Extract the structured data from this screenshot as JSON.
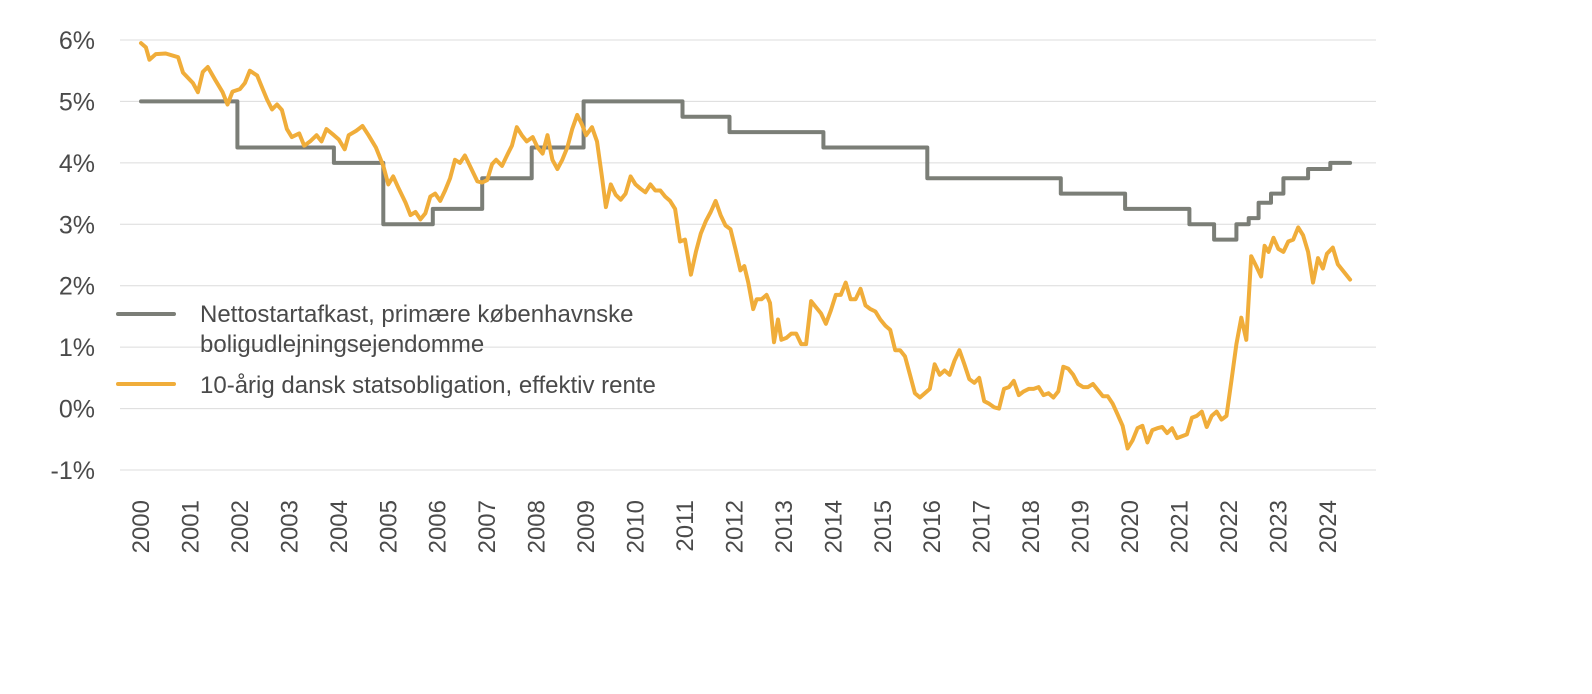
{
  "chart_data": {
    "type": "line",
    "title": "",
    "xlabel": "",
    "ylabel": "",
    "xlim": [
      2000,
      2024.67
    ],
    "ylim": [
      -1,
      6
    ],
    "grid": "horizontal",
    "legend_position": "left-middle",
    "y_ticks": [
      {
        "value": 6,
        "label": "6%"
      },
      {
        "value": 5,
        "label": "5%"
      },
      {
        "value": 4,
        "label": "4%"
      },
      {
        "value": 3,
        "label": "3%"
      },
      {
        "value": 2,
        "label": "2%"
      },
      {
        "value": 1,
        "label": "1%"
      },
      {
        "value": 0,
        "label": "0%"
      },
      {
        "value": -1,
        "label": "-1%"
      }
    ],
    "x_ticks": [
      "2000",
      "2001",
      "2002",
      "2003",
      "2004",
      "2005",
      "2006",
      "2007",
      "2008",
      "2009",
      "2010",
      "2011",
      "2012",
      "2013",
      "2014",
      "2015",
      "2016",
      "2017",
      "2018",
      "2019",
      "2020",
      "2021",
      "2022",
      "2023",
      "2024"
    ],
    "series": [
      {
        "name_lines": [
          "Nettostartafkast, primære københavnske",
          "boligudlejningsejendomme"
        ],
        "color": "#7b7e77",
        "step": true,
        "points": [
          [
            2000.0,
            5.0
          ],
          [
            2001.95,
            5.0
          ],
          [
            2001.95,
            4.25
          ],
          [
            2003.9,
            4.25
          ],
          [
            2003.9,
            4.0
          ],
          [
            2004.9,
            4.0
          ],
          [
            2004.9,
            3.0
          ],
          [
            2005.9,
            3.0
          ],
          [
            2005.9,
            3.25
          ],
          [
            2006.9,
            3.25
          ],
          [
            2006.9,
            3.75
          ],
          [
            2007.9,
            3.75
          ],
          [
            2007.9,
            4.25
          ],
          [
            2008.95,
            4.25
          ],
          [
            2008.95,
            5.0
          ],
          [
            2010.95,
            5.0
          ],
          [
            2010.95,
            4.75
          ],
          [
            2011.9,
            4.75
          ],
          [
            2011.9,
            4.5
          ],
          [
            2013.8,
            4.5
          ],
          [
            2013.8,
            4.25
          ],
          [
            2015.9,
            4.25
          ],
          [
            2015.9,
            3.75
          ],
          [
            2018.6,
            3.75
          ],
          [
            2018.6,
            3.5
          ],
          [
            2019.9,
            3.5
          ],
          [
            2019.9,
            3.25
          ],
          [
            2021.2,
            3.25
          ],
          [
            2021.2,
            3.0
          ],
          [
            2021.7,
            3.0
          ],
          [
            2021.7,
            2.75
          ],
          [
            2022.15,
            2.75
          ],
          [
            2022.15,
            3.0
          ],
          [
            2022.4,
            3.0
          ],
          [
            2022.4,
            3.1
          ],
          [
            2022.6,
            3.1
          ],
          [
            2022.6,
            3.35
          ],
          [
            2022.85,
            3.35
          ],
          [
            2022.85,
            3.5
          ],
          [
            2023.1,
            3.5
          ],
          [
            2023.1,
            3.75
          ],
          [
            2023.6,
            3.75
          ],
          [
            2023.6,
            3.9
          ],
          [
            2024.05,
            3.9
          ],
          [
            2024.05,
            4.0
          ],
          [
            2024.45,
            4.0
          ]
        ]
      },
      {
        "name_lines": [
          "10-årig dansk statsobligation, effektiv rente"
        ],
        "color": "#f0ad3a",
        "step": false,
        "points": [
          [
            2000.0,
            5.95
          ],
          [
            2000.1,
            5.88
          ],
          [
            2000.17,
            5.68
          ],
          [
            2000.3,
            5.77
          ],
          [
            2000.5,
            5.78
          ],
          [
            2000.75,
            5.72
          ],
          [
            2000.85,
            5.47
          ],
          [
            2001.05,
            5.3
          ],
          [
            2001.15,
            5.15
          ],
          [
            2001.25,
            5.48
          ],
          [
            2001.35,
            5.56
          ],
          [
            2001.5,
            5.35
          ],
          [
            2001.65,
            5.15
          ],
          [
            2001.75,
            4.95
          ],
          [
            2001.85,
            5.16
          ],
          [
            2002.0,
            5.2
          ],
          [
            2002.1,
            5.3
          ],
          [
            2002.2,
            5.5
          ],
          [
            2002.35,
            5.42
          ],
          [
            2002.45,
            5.22
          ],
          [
            2002.55,
            5.03
          ],
          [
            2002.65,
            4.87
          ],
          [
            2002.75,
            4.95
          ],
          [
            2002.85,
            4.86
          ],
          [
            2002.95,
            4.55
          ],
          [
            2003.05,
            4.42
          ],
          [
            2003.2,
            4.48
          ],
          [
            2003.3,
            4.28
          ],
          [
            2003.42,
            4.35
          ],
          [
            2003.55,
            4.45
          ],
          [
            2003.65,
            4.35
          ],
          [
            2003.75,
            4.55
          ],
          [
            2003.9,
            4.45
          ],
          [
            2004.0,
            4.38
          ],
          [
            2004.12,
            4.22
          ],
          [
            2004.2,
            4.45
          ],
          [
            2004.35,
            4.52
          ],
          [
            2004.48,
            4.6
          ],
          [
            2004.6,
            4.45
          ],
          [
            2004.75,
            4.25
          ],
          [
            2004.9,
            3.95
          ],
          [
            2005.0,
            3.65
          ],
          [
            2005.1,
            3.78
          ],
          [
            2005.2,
            3.6
          ],
          [
            2005.35,
            3.35
          ],
          [
            2005.45,
            3.15
          ],
          [
            2005.55,
            3.2
          ],
          [
            2005.65,
            3.08
          ],
          [
            2005.75,
            3.18
          ],
          [
            2005.85,
            3.45
          ],
          [
            2005.95,
            3.5
          ],
          [
            2006.05,
            3.38
          ],
          [
            2006.15,
            3.55
          ],
          [
            2006.25,
            3.75
          ],
          [
            2006.35,
            4.05
          ],
          [
            2006.45,
            4.0
          ],
          [
            2006.55,
            4.12
          ],
          [
            2006.65,
            3.95
          ],
          [
            2006.8,
            3.7
          ],
          [
            2006.9,
            3.68
          ],
          [
            2007.0,
            3.72
          ],
          [
            2007.1,
            3.98
          ],
          [
            2007.18,
            4.05
          ],
          [
            2007.3,
            3.95
          ],
          [
            2007.42,
            4.15
          ],
          [
            2007.5,
            4.28
          ],
          [
            2007.6,
            4.58
          ],
          [
            2007.7,
            4.45
          ],
          [
            2007.8,
            4.35
          ],
          [
            2007.92,
            4.42
          ],
          [
            2008.02,
            4.25
          ],
          [
            2008.12,
            4.15
          ],
          [
            2008.22,
            4.45
          ],
          [
            2008.32,
            4.05
          ],
          [
            2008.42,
            3.9
          ],
          [
            2008.52,
            4.05
          ],
          [
            2008.62,
            4.25
          ],
          [
            2008.72,
            4.55
          ],
          [
            2008.82,
            4.78
          ],
          [
            2008.92,
            4.62
          ],
          [
            2009.0,
            4.45
          ],
          [
            2009.12,
            4.58
          ],
          [
            2009.22,
            4.35
          ],
          [
            2009.32,
            3.78
          ],
          [
            2009.4,
            3.28
          ],
          [
            2009.5,
            3.65
          ],
          [
            2009.6,
            3.48
          ],
          [
            2009.7,
            3.4
          ],
          [
            2009.8,
            3.5
          ],
          [
            2009.9,
            3.78
          ],
          [
            2010.0,
            3.65
          ],
          [
            2010.1,
            3.58
          ],
          [
            2010.2,
            3.52
          ],
          [
            2010.3,
            3.65
          ],
          [
            2010.4,
            3.55
          ],
          [
            2010.5,
            3.55
          ],
          [
            2010.6,
            3.45
          ],
          [
            2010.7,
            3.38
          ],
          [
            2010.8,
            3.25
          ],
          [
            2010.9,
            2.72
          ],
          [
            2011.0,
            2.75
          ],
          [
            2011.12,
            2.18
          ],
          [
            2011.22,
            2.55
          ],
          [
            2011.32,
            2.85
          ],
          [
            2011.42,
            3.05
          ],
          [
            2011.52,
            3.2
          ],
          [
            2011.62,
            3.38
          ],
          [
            2011.72,
            3.15
          ],
          [
            2011.82,
            2.98
          ],
          [
            2011.92,
            2.92
          ],
          [
            2012.02,
            2.6
          ],
          [
            2012.12,
            2.25
          ],
          [
            2012.2,
            2.32
          ],
          [
            2012.28,
            2.05
          ],
          [
            2012.38,
            1.62
          ],
          [
            2012.45,
            1.78
          ],
          [
            2012.55,
            1.78
          ],
          [
            2012.65,
            1.85
          ],
          [
            2012.72,
            1.72
          ],
          [
            2012.8,
            1.08
          ],
          [
            2012.88,
            1.45
          ],
          [
            2012.95,
            1.12
          ],
          [
            2013.05,
            1.15
          ],
          [
            2013.15,
            1.22
          ],
          [
            2013.25,
            1.22
          ],
          [
            2013.35,
            1.05
          ],
          [
            2013.45,
            1.05
          ],
          [
            2013.55,
            1.75
          ],
          [
            2013.65,
            1.65
          ],
          [
            2013.75,
            1.55
          ],
          [
            2013.85,
            1.38
          ],
          [
            2013.95,
            1.6
          ],
          [
            2014.05,
            1.85
          ],
          [
            2014.15,
            1.85
          ],
          [
            2014.25,
            2.05
          ],
          [
            2014.35,
            1.78
          ],
          [
            2014.45,
            1.78
          ],
          [
            2014.55,
            1.95
          ],
          [
            2014.65,
            1.68
          ],
          [
            2014.75,
            1.62
          ],
          [
            2014.85,
            1.58
          ],
          [
            2014.95,
            1.45
          ],
          [
            2015.05,
            1.35
          ],
          [
            2015.15,
            1.28
          ],
          [
            2015.25,
            0.95
          ],
          [
            2015.35,
            0.95
          ],
          [
            2015.45,
            0.85
          ],
          [
            2015.55,
            0.55
          ],
          [
            2015.65,
            0.25
          ],
          [
            2015.75,
            0.18
          ],
          [
            2015.85,
            0.25
          ],
          [
            2015.95,
            0.32
          ],
          [
            2016.05,
            0.72
          ],
          [
            2016.15,
            0.55
          ],
          [
            2016.25,
            0.62
          ],
          [
            2016.35,
            0.55
          ],
          [
            2016.45,
            0.78
          ],
          [
            2016.55,
            0.95
          ],
          [
            2016.65,
            0.72
          ],
          [
            2016.75,
            0.48
          ],
          [
            2016.85,
            0.42
          ],
          [
            2016.95,
            0.5
          ],
          [
            2017.05,
            0.12
          ],
          [
            2017.15,
            0.08
          ],
          [
            2017.25,
            0.02
          ],
          [
            2017.35,
            0.0
          ],
          [
            2017.45,
            0.32
          ],
          [
            2017.55,
            0.35
          ],
          [
            2017.65,
            0.45
          ],
          [
            2017.75,
            0.22
          ],
          [
            2017.85,
            0.28
          ],
          [
            2017.95,
            0.32
          ],
          [
            2018.05,
            0.32
          ],
          [
            2018.15,
            0.35
          ],
          [
            2018.25,
            0.22
          ],
          [
            2018.35,
            0.25
          ],
          [
            2018.45,
            0.18
          ],
          [
            2018.55,
            0.28
          ],
          [
            2018.65,
            0.68
          ],
          [
            2018.75,
            0.65
          ],
          [
            2018.85,
            0.55
          ],
          [
            2018.95,
            0.4
          ],
          [
            2019.05,
            0.35
          ],
          [
            2019.15,
            0.35
          ],
          [
            2019.25,
            0.4
          ],
          [
            2019.35,
            0.3
          ],
          [
            2019.45,
            0.2
          ],
          [
            2019.55,
            0.2
          ],
          [
            2019.65,
            0.08
          ],
          [
            2019.75,
            -0.1
          ],
          [
            2019.85,
            -0.28
          ],
          [
            2019.95,
            -0.65
          ],
          [
            2020.05,
            -0.52
          ],
          [
            2020.15,
            -0.32
          ],
          [
            2020.25,
            -0.28
          ],
          [
            2020.35,
            -0.55
          ],
          [
            2020.45,
            -0.35
          ],
          [
            2020.55,
            -0.32
          ],
          [
            2020.65,
            -0.3
          ],
          [
            2020.75,
            -0.4
          ],
          [
            2020.85,
            -0.32
          ],
          [
            2020.95,
            -0.48
          ],
          [
            2021.05,
            -0.45
          ],
          [
            2021.15,
            -0.42
          ],
          [
            2021.25,
            -0.15
          ],
          [
            2021.35,
            -0.12
          ],
          [
            2021.45,
            -0.05
          ],
          [
            2021.55,
            -0.3
          ],
          [
            2021.65,
            -0.12
          ],
          [
            2021.75,
            -0.05
          ],
          [
            2021.85,
            -0.18
          ],
          [
            2021.95,
            -0.12
          ],
          [
            2022.05,
            0.45
          ],
          [
            2022.15,
            1.05
          ],
          [
            2022.25,
            1.48
          ],
          [
            2022.35,
            1.12
          ],
          [
            2022.45,
            2.48
          ],
          [
            2022.55,
            2.32
          ],
          [
            2022.65,
            2.15
          ],
          [
            2022.72,
            2.65
          ],
          [
            2022.8,
            2.55
          ],
          [
            2022.9,
            2.78
          ],
          [
            2023.0,
            2.6
          ],
          [
            2023.1,
            2.55
          ],
          [
            2023.2,
            2.72
          ],
          [
            2023.3,
            2.75
          ],
          [
            2023.4,
            2.95
          ],
          [
            2023.5,
            2.82
          ],
          [
            2023.6,
            2.55
          ],
          [
            2023.7,
            2.05
          ],
          [
            2023.8,
            2.45
          ],
          [
            2023.9,
            2.28
          ],
          [
            2023.98,
            2.52
          ],
          [
            2024.1,
            2.62
          ],
          [
            2024.2,
            2.35
          ],
          [
            2024.3,
            2.25
          ],
          [
            2024.45,
            2.1
          ]
        ]
      }
    ]
  }
}
